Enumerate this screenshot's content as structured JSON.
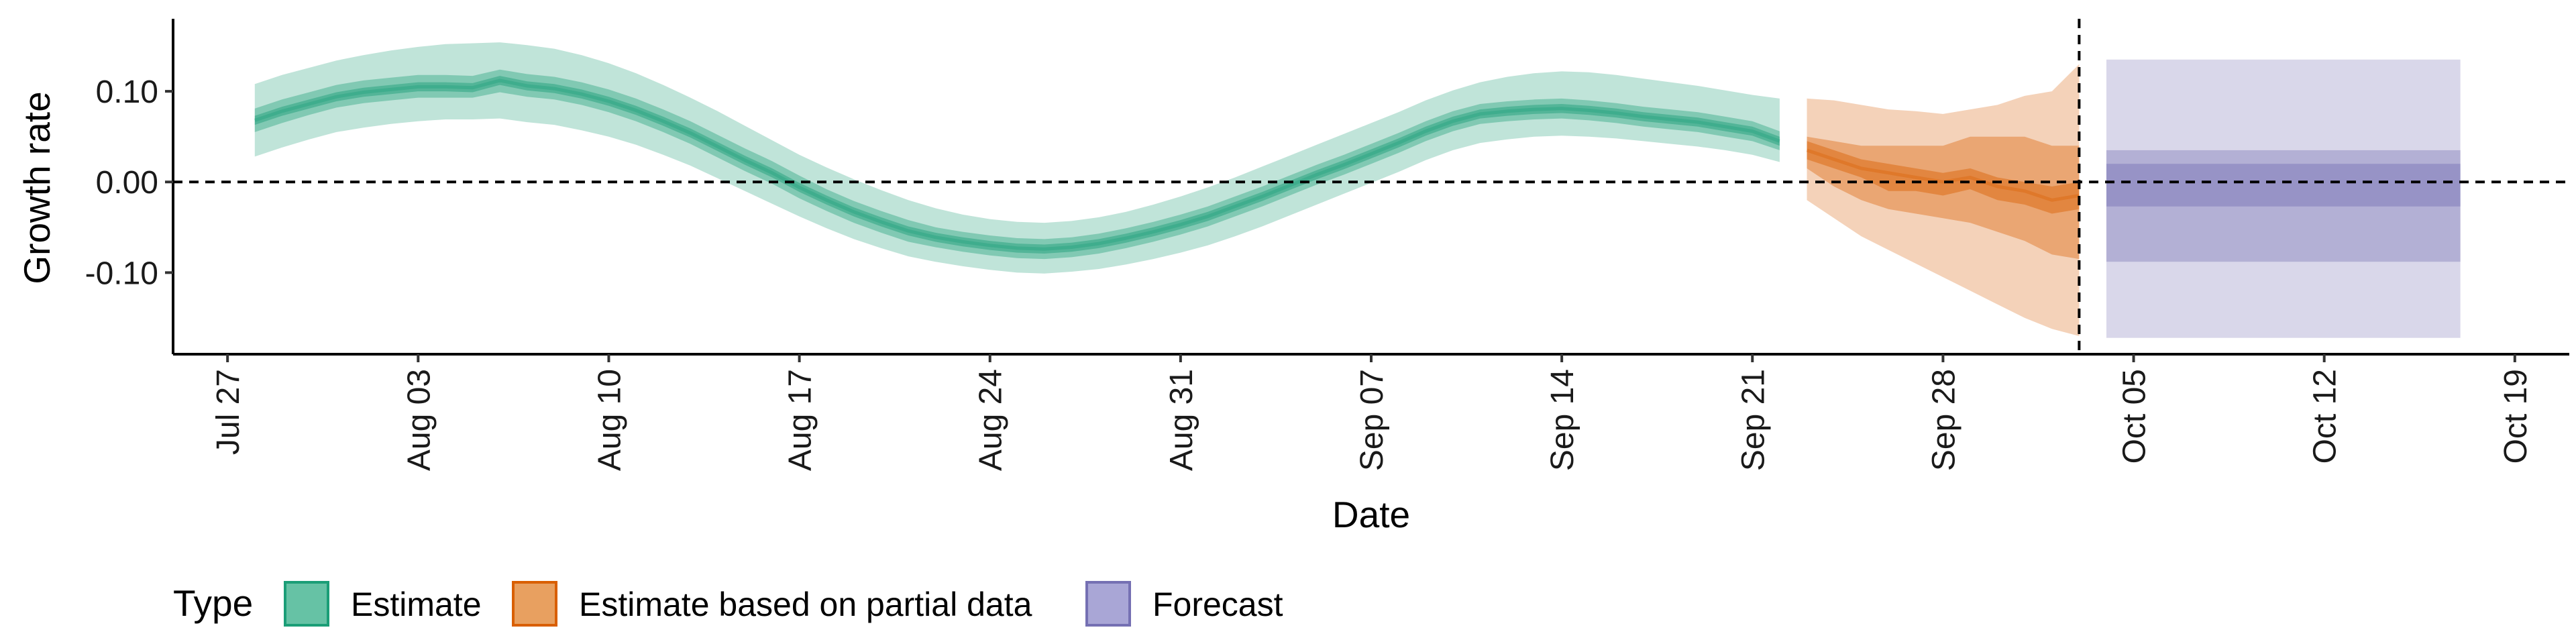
{
  "chart_data": {
    "type": "area",
    "xlabel": "Date",
    "ylabel": "Growth rate",
    "ylim": [
      -0.19,
      0.18
    ],
    "xlim": [
      "2020-07-25",
      "2020-10-21"
    ],
    "y_ticks": [
      {
        "value": 0.1,
        "label": "0.10"
      },
      {
        "value": 0.0,
        "label": "0.00"
      },
      {
        "value": -0.1,
        "label": "-0.10"
      }
    ],
    "x_ticks": [
      {
        "date": "2020-07-27",
        "label": "Jul 27"
      },
      {
        "date": "2020-08-03",
        "label": "Aug 03"
      },
      {
        "date": "2020-08-10",
        "label": "Aug 10"
      },
      {
        "date": "2020-08-17",
        "label": "Aug 17"
      },
      {
        "date": "2020-08-24",
        "label": "Aug 24"
      },
      {
        "date": "2020-08-31",
        "label": "Aug 31"
      },
      {
        "date": "2020-09-07",
        "label": "Sep 07"
      },
      {
        "date": "2020-09-14",
        "label": "Sep 14"
      },
      {
        "date": "2020-09-21",
        "label": "Sep 21"
      },
      {
        "date": "2020-09-28",
        "label": "Sep 28"
      },
      {
        "date": "2020-10-05",
        "label": "Oct 05"
      },
      {
        "date": "2020-10-12",
        "label": "Oct 12"
      },
      {
        "date": "2020-10-19",
        "label": "Oct 19"
      }
    ],
    "reference_lines": {
      "horizontal_y": 0.0,
      "vertical_date": "2020-10-03"
    },
    "grid": false,
    "legend": {
      "title": "Type",
      "position": "bottom",
      "entries": [
        {
          "label": "Estimate",
          "fill": "#66c2a5",
          "stroke": "#1b9e77"
        },
        {
          "label": "Estimate based on partial data",
          "fill": "#e8a060",
          "stroke": "#d95f02"
        },
        {
          "label": "Forecast",
          "fill": "#a9a6d6",
          "stroke": "#7570b3"
        }
      ]
    },
    "series": [
      {
        "name": "Estimate",
        "color": "#1b9e77",
        "x": [
          "2020-07-28",
          "2020-07-29",
          "2020-07-30",
          "2020-07-31",
          "2020-08-01",
          "2020-08-02",
          "2020-08-03",
          "2020-08-04",
          "2020-08-05",
          "2020-08-06",
          "2020-08-07",
          "2020-08-08",
          "2020-08-09",
          "2020-08-10",
          "2020-08-11",
          "2020-08-12",
          "2020-08-13",
          "2020-08-14",
          "2020-08-15",
          "2020-08-16",
          "2020-08-17",
          "2020-08-18",
          "2020-08-19",
          "2020-08-20",
          "2020-08-21",
          "2020-08-22",
          "2020-08-23",
          "2020-08-24",
          "2020-08-25",
          "2020-08-26",
          "2020-08-27",
          "2020-08-28",
          "2020-08-29",
          "2020-08-30",
          "2020-08-31",
          "2020-09-01",
          "2020-09-02",
          "2020-09-03",
          "2020-09-04",
          "2020-09-05",
          "2020-09-06",
          "2020-09-07",
          "2020-09-08",
          "2020-09-09",
          "2020-09-10",
          "2020-09-11",
          "2020-09-12",
          "2020-09-13",
          "2020-09-14",
          "2020-09-15",
          "2020-09-16",
          "2020-09-17",
          "2020-09-18",
          "2020-09-19",
          "2020-09-20",
          "2020-09-21",
          "2020-09-22"
        ],
        "median": [
          0.068,
          0.078,
          0.086,
          0.094,
          0.099,
          0.102,
          0.105,
          0.105,
          0.104,
          0.112,
          0.106,
          0.103,
          0.097,
          0.089,
          0.079,
          0.067,
          0.054,
          0.039,
          0.024,
          0.01,
          -0.006,
          -0.02,
          -0.033,
          -0.044,
          -0.054,
          -0.061,
          -0.066,
          -0.07,
          -0.073,
          -0.074,
          -0.072,
          -0.068,
          -0.062,
          -0.055,
          -0.047,
          -0.038,
          -0.027,
          -0.016,
          -0.004,
          0.008,
          0.019,
          0.031,
          0.043,
          0.056,
          0.067,
          0.075,
          0.078,
          0.08,
          0.081,
          0.079,
          0.076,
          0.072,
          0.069,
          0.066,
          0.061,
          0.056,
          0.045
        ],
        "bands": [
          {
            "level": "90%",
            "lower": [
              0.028,
              0.038,
              0.047,
              0.055,
              0.06,
              0.064,
              0.067,
              0.069,
              0.069,
              0.07,
              0.066,
              0.063,
              0.057,
              0.05,
              0.041,
              0.03,
              0.018,
              0.004,
              -0.01,
              -0.024,
              -0.038,
              -0.051,
              -0.063,
              -0.073,
              -0.082,
              -0.088,
              -0.093,
              -0.097,
              -0.1,
              -0.101,
              -0.099,
              -0.096,
              -0.091,
              -0.085,
              -0.078,
              -0.07,
              -0.06,
              -0.049,
              -0.037,
              -0.025,
              -0.013,
              -0.001,
              0.011,
              0.024,
              0.035,
              0.043,
              0.047,
              0.05,
              0.051,
              0.05,
              0.048,
              0.045,
              0.042,
              0.039,
              0.035,
              0.03,
              0.022
            ],
            "upper": [
              0.108,
              0.118,
              0.126,
              0.134,
              0.14,
              0.145,
              0.149,
              0.152,
              0.153,
              0.154,
              0.151,
              0.147,
              0.14,
              0.131,
              0.12,
              0.107,
              0.093,
              0.078,
              0.062,
              0.046,
              0.03,
              0.016,
              0.003,
              -0.009,
              -0.02,
              -0.029,
              -0.036,
              -0.041,
              -0.044,
              -0.045,
              -0.043,
              -0.039,
              -0.033,
              -0.025,
              -0.016,
              -0.006,
              0.005,
              0.017,
              0.029,
              0.041,
              0.053,
              0.065,
              0.077,
              0.09,
              0.101,
              0.11,
              0.116,
              0.12,
              0.122,
              0.121,
              0.118,
              0.114,
              0.11,
              0.106,
              0.101,
              0.096,
              0.092
            ]
          },
          {
            "level": "50%",
            "lower": [
              0.055,
              0.065,
              0.074,
              0.082,
              0.087,
              0.09,
              0.093,
              0.093,
              0.093,
              0.099,
              0.094,
              0.091,
              0.085,
              0.077,
              0.067,
              0.055,
              0.042,
              0.027,
              0.012,
              -0.002,
              -0.018,
              -0.032,
              -0.045,
              -0.056,
              -0.066,
              -0.072,
              -0.077,
              -0.081,
              -0.084,
              -0.085,
              -0.083,
              -0.079,
              -0.073,
              -0.066,
              -0.058,
              -0.049,
              -0.038,
              -0.027,
              -0.015,
              -0.003,
              0.008,
              0.02,
              0.032,
              0.045,
              0.056,
              0.064,
              0.067,
              0.069,
              0.07,
              0.068,
              0.065,
              0.061,
              0.058,
              0.055,
              0.05,
              0.045,
              0.035
            ],
            "upper": [
              0.081,
              0.091,
              0.099,
              0.107,
              0.112,
              0.115,
              0.118,
              0.118,
              0.117,
              0.124,
              0.119,
              0.116,
              0.11,
              0.102,
              0.092,
              0.08,
              0.067,
              0.052,
              0.037,
              0.023,
              0.007,
              -0.008,
              -0.021,
              -0.032,
              -0.042,
              -0.05,
              -0.055,
              -0.059,
              -0.062,
              -0.063,
              -0.061,
              -0.057,
              -0.051,
              -0.044,
              -0.036,
              -0.027,
              -0.016,
              -0.005,
              0.007,
              0.019,
              0.03,
              0.042,
              0.054,
              0.067,
              0.078,
              0.086,
              0.089,
              0.091,
              0.092,
              0.09,
              0.087,
              0.083,
              0.08,
              0.077,
              0.072,
              0.067,
              0.056
            ]
          },
          {
            "level": "20%",
            "lower": [
              0.063,
              0.073,
              0.081,
              0.089,
              0.094,
              0.097,
              0.1,
              0.1,
              0.099,
              0.107,
              0.101,
              0.098,
              0.092,
              0.084,
              0.074,
              0.062,
              0.049,
              0.034,
              0.019,
              0.005,
              -0.011,
              -0.025,
              -0.038,
              -0.049,
              -0.059,
              -0.066,
              -0.071,
              -0.075,
              -0.078,
              -0.079,
              -0.077,
              -0.073,
              -0.067,
              -0.06,
              -0.052,
              -0.043,
              -0.032,
              -0.021,
              -0.009,
              0.003,
              0.014,
              0.026,
              0.038,
              0.051,
              0.062,
              0.07,
              0.073,
              0.075,
              0.076,
              0.074,
              0.071,
              0.067,
              0.064,
              0.061,
              0.056,
              0.051,
              0.04
            ],
            "upper": [
              0.073,
              0.083,
              0.091,
              0.099,
              0.104,
              0.107,
              0.11,
              0.11,
              0.109,
              0.117,
              0.111,
              0.108,
              0.102,
              0.094,
              0.084,
              0.072,
              0.059,
              0.044,
              0.029,
              0.015,
              -0.001,
              -0.015,
              -0.028,
              -0.039,
              -0.049,
              -0.056,
              -0.061,
              -0.065,
              -0.068,
              -0.069,
              -0.067,
              -0.063,
              -0.057,
              -0.05,
              -0.042,
              -0.033,
              -0.022,
              -0.011,
              0.001,
              0.013,
              0.024,
              0.036,
              0.048,
              0.061,
              0.072,
              0.08,
              0.083,
              0.085,
              0.086,
              0.084,
              0.081,
              0.077,
              0.074,
              0.071,
              0.066,
              0.061,
              0.05
            ]
          }
        ]
      },
      {
        "name": "Estimate based on partial data",
        "color": "#d95f02",
        "x": [
          "2020-09-23",
          "2020-09-24",
          "2020-09-25",
          "2020-09-26",
          "2020-09-27",
          "2020-09-28",
          "2020-09-29",
          "2020-09-30",
          "2020-10-01",
          "2020-10-02",
          "2020-10-03"
        ],
        "median": [
          0.035,
          0.025,
          0.015,
          0.01,
          0.005,
          0.0,
          0.005,
          -0.005,
          -0.01,
          -0.02,
          -0.015
        ],
        "bands": [
          {
            "level": "90%",
            "lower": [
              -0.02,
              -0.04,
              -0.06,
              -0.075,
              -0.09,
              -0.105,
              -0.12,
              -0.135,
              -0.15,
              -0.162,
              -0.17
            ],
            "upper": [
              0.092,
              0.09,
              0.085,
              0.08,
              0.078,
              0.075,
              0.08,
              0.085,
              0.095,
              0.1,
              0.13
            ]
          },
          {
            "level": "50%",
            "lower": [
              0.015,
              -0.005,
              -0.02,
              -0.03,
              -0.035,
              -0.04,
              -0.045,
              -0.055,
              -0.065,
              -0.08,
              -0.085
            ],
            "upper": [
              0.05,
              0.045,
              0.04,
              0.04,
              0.04,
              0.04,
              0.05,
              0.05,
              0.05,
              0.04,
              0.04
            ]
          },
          {
            "level": "20%",
            "lower": [
              0.025,
              0.015,
              0.005,
              -0.01,
              -0.01,
              -0.015,
              -0.008,
              -0.02,
              -0.025,
              -0.035,
              -0.03
            ],
            "upper": [
              0.045,
              0.035,
              0.025,
              0.02,
              0.015,
              0.01,
              0.015,
              0.005,
              0.0,
              -0.005,
              0.0
            ]
          }
        ]
      },
      {
        "name": "Forecast",
        "color": "#7570b3",
        "x": [
          "2020-10-04",
          "2020-10-17"
        ],
        "bands": [
          {
            "level": "90%",
            "lower": -0.172,
            "upper": 0.135
          },
          {
            "level": "50%",
            "lower": -0.088,
            "upper": 0.035
          },
          {
            "level": "20%",
            "lower": -0.027,
            "upper": 0.02
          }
        ]
      }
    ]
  }
}
